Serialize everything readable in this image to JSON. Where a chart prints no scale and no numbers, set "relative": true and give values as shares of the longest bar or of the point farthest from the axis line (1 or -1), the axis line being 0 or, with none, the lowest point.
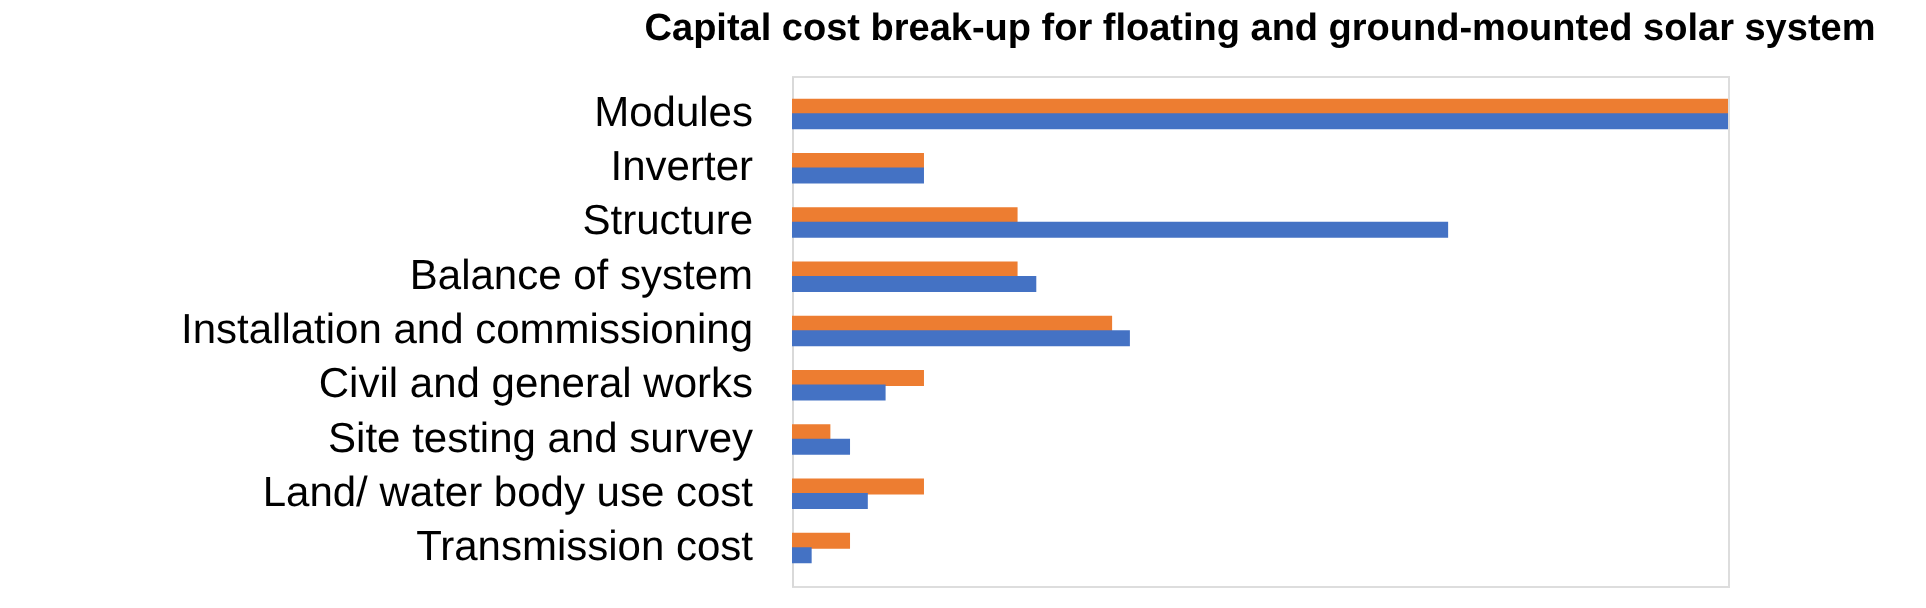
{
  "chart_data": {
    "type": "bar",
    "orientation": "horizontal",
    "relative": true,
    "title": "Capital cost break-up for floating and ground-mounted solar system",
    "categories": [
      "Modules",
      "Inverter",
      "Structure",
      "Balance of system",
      "Installation and commissioning",
      "Civil and general works",
      "Site testing and survey",
      "Land/ water body use cost",
      "Transmission cost"
    ],
    "series": [
      {
        "color": "#ed7d31",
        "values": [
          1,
          0.141,
          0.241,
          0.241,
          0.342,
          0.141,
          0.041,
          0.141,
          0.062
        ]
      },
      {
        "color": "#4472c4",
        "values": [
          1,
          0.141,
          0.701,
          0.261,
          0.361,
          0.1,
          0.062,
          0.081,
          0.021
        ]
      }
    ],
    "legend": false
  }
}
